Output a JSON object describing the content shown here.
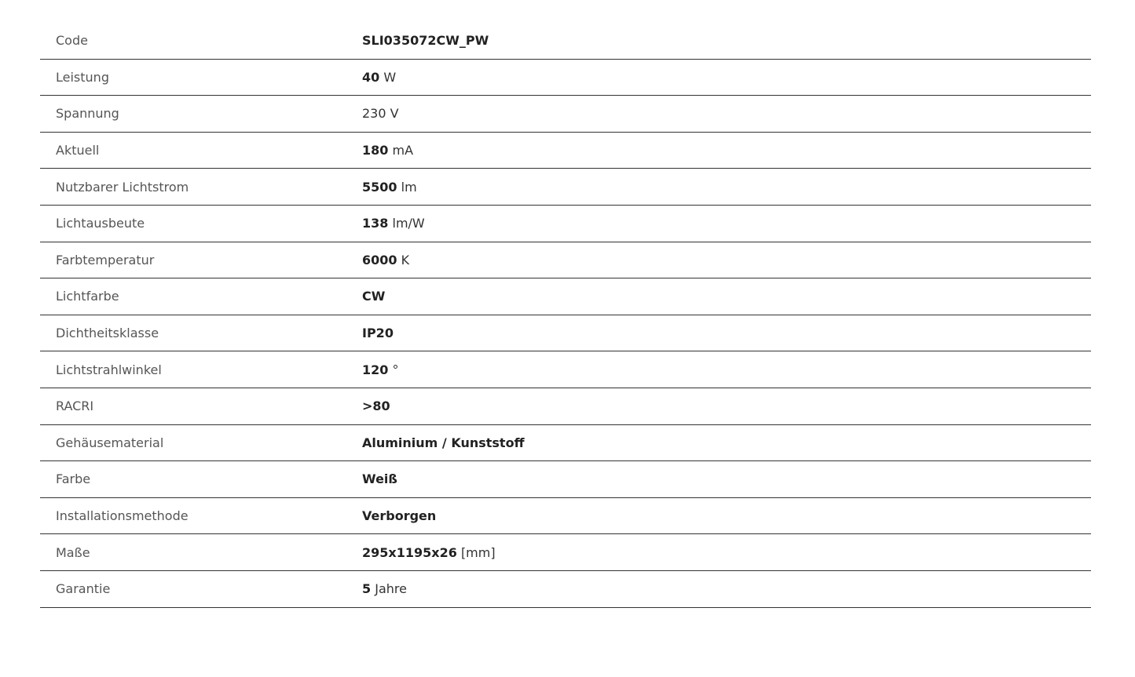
{
  "specs": [
    {
      "label": "Code",
      "value": "SLI035072CW_PW",
      "unit": ""
    },
    {
      "label": "Leistung",
      "value": "40",
      "unit": "W"
    },
    {
      "label": "Spannung",
      "value": "",
      "unit": "230 V"
    },
    {
      "label": "Aktuell",
      "value": "180",
      "unit": "mA"
    },
    {
      "label": "Nutzbarer Lichtstrom",
      "value": "5500",
      "unit": "lm"
    },
    {
      "label": "Lichtausbeute",
      "value": "138",
      "unit": "lm/W"
    },
    {
      "label": "Farbtemperatur",
      "value": "6000",
      "unit": "K"
    },
    {
      "label": "Lichtfarbe",
      "value": "CW",
      "unit": ""
    },
    {
      "label": "Dichtheitsklasse",
      "value": "IP20",
      "unit": ""
    },
    {
      "label": "Lichtstrahlwinkel",
      "value": "120",
      "unit": "°"
    },
    {
      "label": "RACRI",
      "value": ">80",
      "unit": ""
    },
    {
      "label": "Gehäusematerial",
      "value": "Aluminium / Kunststoff",
      "unit": ""
    },
    {
      "label": "Farbe",
      "value": "Weiß",
      "unit": ""
    },
    {
      "label": "Installationsmethode",
      "value": "Verborgen",
      "unit": ""
    },
    {
      "label": "Maße",
      "value": "295x1195x26",
      "unit": "[mm]"
    },
    {
      "label": "Garantie",
      "value": "5",
      "unit": "Jahre"
    }
  ]
}
